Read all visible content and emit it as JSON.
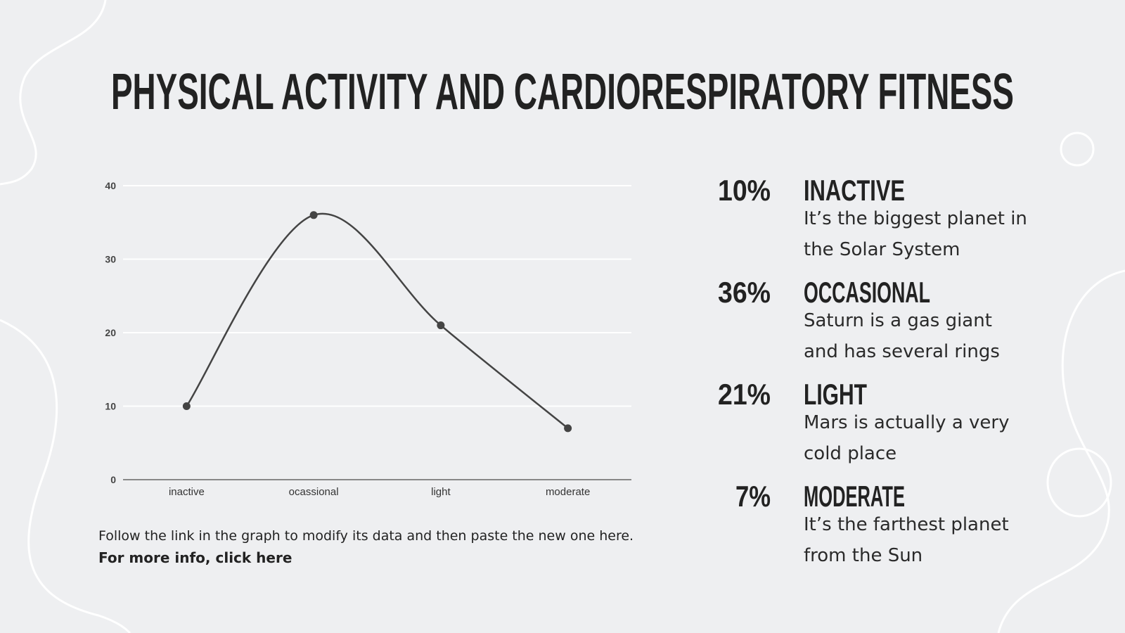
{
  "title": "PHYSICAL ACTIVITY AND CARDIORESPIRATORY FITNESS",
  "chart_data": {
    "type": "line",
    "categories": [
      "inactive",
      "ocassional",
      "light",
      "moderate"
    ],
    "values": [
      10,
      36,
      21,
      7
    ],
    "color": "#444444",
    "smooth": true,
    "ylim": [
      0,
      40
    ],
    "yticks": [
      0,
      10,
      20,
      30,
      40
    ],
    "grid": true
  },
  "items": [
    {
      "value": "10%",
      "label": "INACTIVE",
      "color": "#f0962f",
      "lines": [
        "It’s the biggest planet in",
        "the Solar System"
      ]
    },
    {
      "value": "36%",
      "label": "OCCASIONAL",
      "color": "#e8b46c",
      "lines": [
        "Saturn is a gas giant",
        "and has several rings"
      ]
    },
    {
      "value": "21%",
      "label": "LIGHT",
      "color": "#f0962f",
      "lines": [
        "Mars is actually a very",
        "cold place"
      ]
    },
    {
      "value": "7%",
      "label": "MODERATE",
      "color": "#e8b46c",
      "lines": [
        "It’s the farthest planet",
        "from the Sun"
      ]
    }
  ],
  "note": "Follow the link in the graph to modify its data and then paste the new one here.",
  "link": "For more info, click here"
}
